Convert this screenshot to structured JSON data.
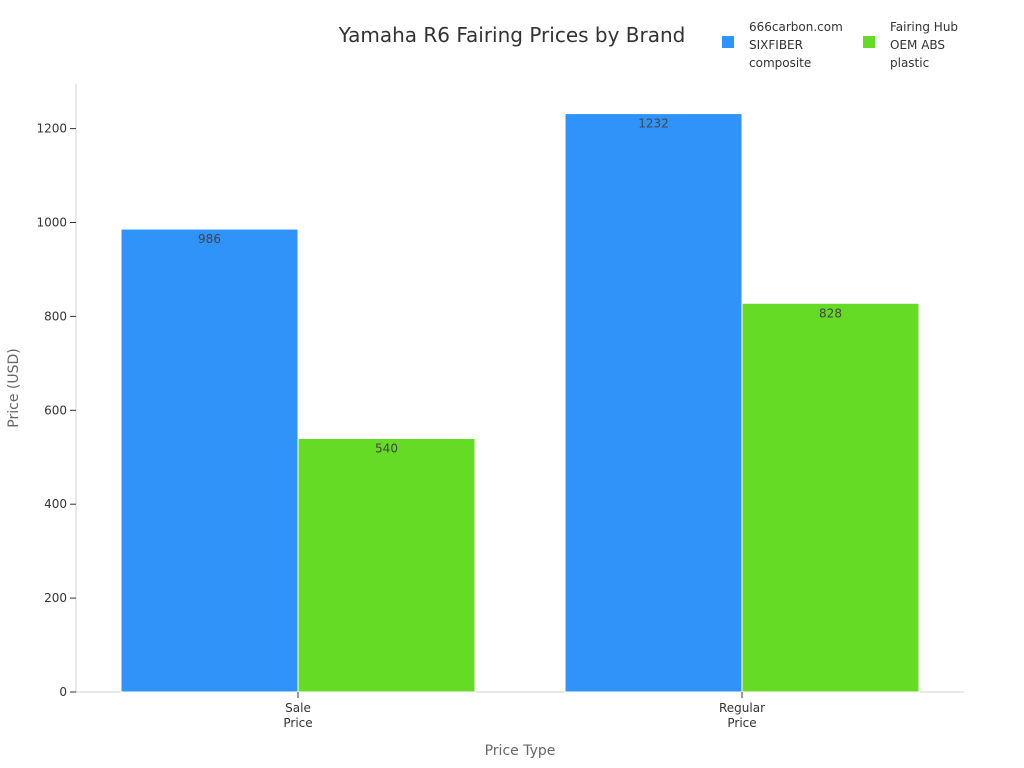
{
  "chart_data": {
    "type": "bar",
    "title": "Yamaha R6 Fairing Prices by Brand",
    "xlabel": "Price Type",
    "ylabel": "Price (USD)",
    "categories": [
      [
        "Sale",
        "Price"
      ],
      [
        "Regular",
        "Price"
      ]
    ],
    "series": [
      {
        "name": [
          "666carbon.com",
          "SIXFIBER",
          "composite"
        ],
        "color": "#3093f9",
        "values": [
          986,
          1232
        ]
      },
      {
        "name": [
          "Fairing Hub",
          "OEM ABS",
          "plastic"
        ],
        "color": "#66db26",
        "values": [
          540,
          828
        ]
      }
    ],
    "yticks": [
      0,
      200,
      400,
      600,
      800,
      1000,
      1200
    ],
    "ylim": [
      0,
      1295
    ],
    "grid": false,
    "legend_position": "top-right"
  }
}
